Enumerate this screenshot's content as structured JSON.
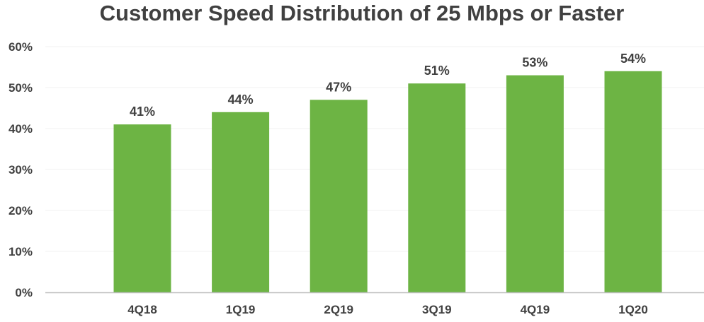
{
  "chart_data": {
    "type": "bar",
    "title": "Customer Speed Distribution of 25 Mbps or Faster",
    "xlabel": "",
    "ylabel": "",
    "categories": [
      "4Q18",
      "1Q19",
      "2Q19",
      "3Q19",
      "4Q19",
      "1Q20"
    ],
    "values": [
      41,
      44,
      47,
      51,
      53,
      54
    ],
    "data_labels": [
      "41%",
      "44%",
      "47%",
      "51%",
      "53%",
      "54%"
    ],
    "ylim": [
      0,
      60
    ],
    "yticks": [
      0,
      10,
      20,
      30,
      40,
      50,
      60
    ],
    "ytick_labels": [
      "0%",
      "10%",
      "20%",
      "30%",
      "40%",
      "50%",
      "60%"
    ],
    "grid": true,
    "legend": "none",
    "colors": {
      "bar": "#6db444",
      "text": "#404040",
      "axis": "#bfbfbf",
      "grid": "#f2f2f2"
    }
  }
}
